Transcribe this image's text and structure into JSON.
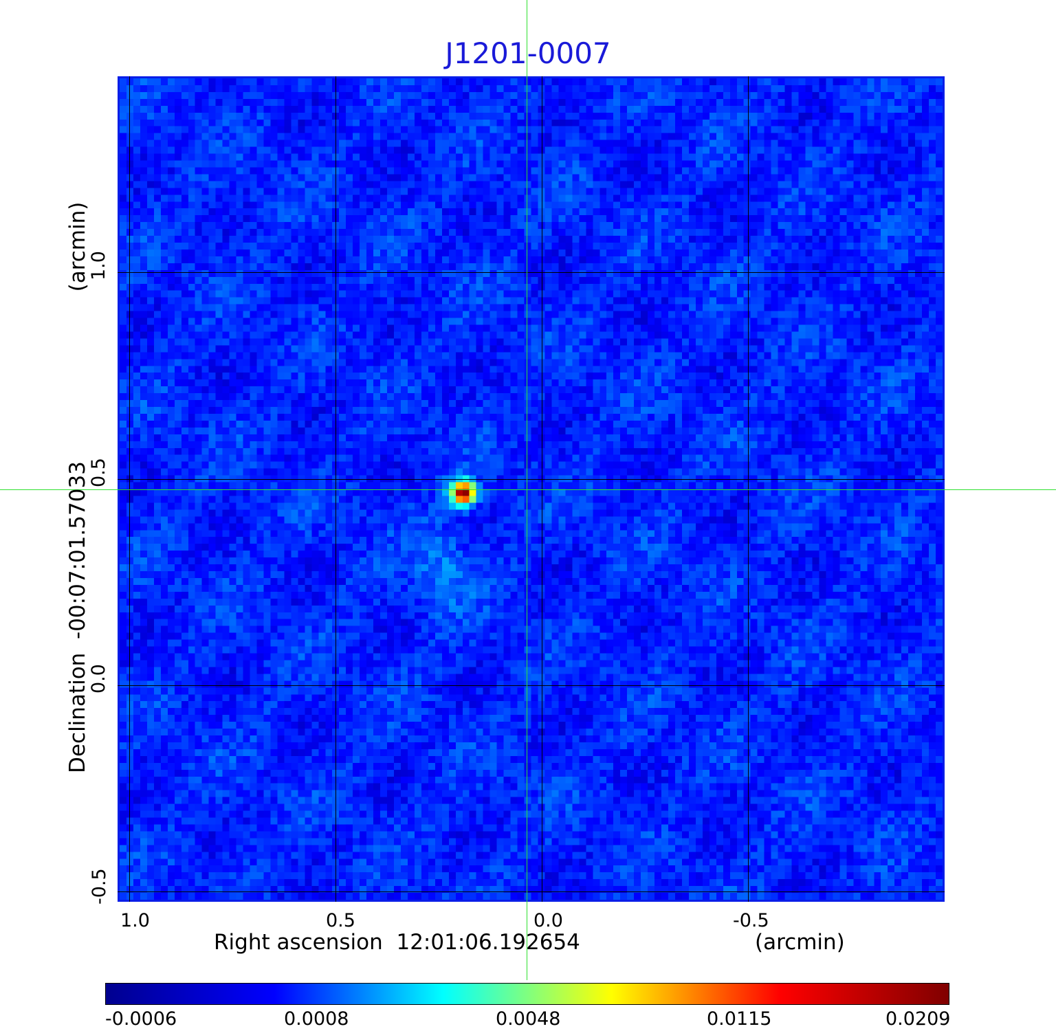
{
  "title": "J1201-0007",
  "axes": {
    "x_label": "Right ascension  12:01:06.192654",
    "x_unit": "(arcmin)",
    "y_label": "Declination  -00:07:01.57033",
    "y_unit": "(arcmin)",
    "x_ticks": [
      "1.0",
      "0.5",
      "0.0",
      "-0.5"
    ],
    "y_ticks": [
      "1.0",
      "0.5",
      "0.0",
      "-0.5"
    ]
  },
  "colorbar": {
    "ticks": [
      "-0.0006",
      "0.0008",
      "0.0048",
      "0.0115",
      "0.0209"
    ],
    "colormap": [
      "#00008f",
      "#0000ff",
      "#00ffff",
      "#ffff00",
      "#ff0000",
      "#800000"
    ]
  },
  "colors": {
    "title": "#1a1ad8",
    "frame": "#0a1ee8",
    "crosshair": "#2ee02e"
  }
}
